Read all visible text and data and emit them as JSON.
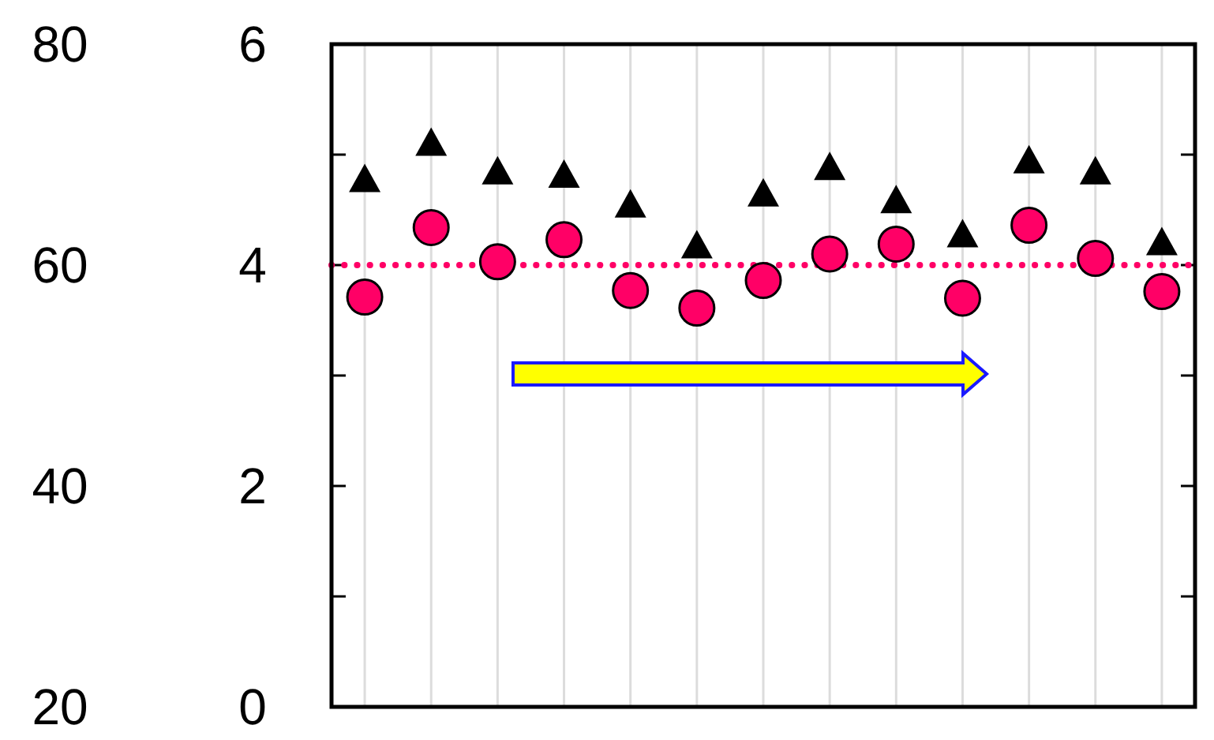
{
  "chart_data": {
    "type": "scatter",
    "categories": [
      null,
      null,
      null,
      null,
      null,
      null,
      null,
      null,
      null,
      null,
      null,
      null,
      null
    ],
    "ylim": [
      0,
      6
    ],
    "yticks": [
      0,
      {
        "value": 1,
        "label": null
      },
      2,
      {
        "value": 3,
        "label": null
      },
      4,
      {
        "value": 5,
        "label": null
      },
      6
    ],
    "y2lim": [
      20,
      80
    ],
    "y2ticks": [
      20,
      40,
      60,
      80
    ],
    "grid": "x",
    "legend": false,
    "series": [
      {
        "axis": "y2",
        "marker": "triangle",
        "color": "#000000",
        "values": [
          67.6,
          70.9,
          68.3,
          68.0,
          65.3,
          61.6,
          66.3,
          68.7,
          65.7,
          62.6,
          69.3,
          68.3,
          61.9
        ]
      },
      {
        "marker": "circle",
        "color": "#ff0066",
        "values": [
          3.71,
          4.34,
          4.03,
          4.23,
          3.77,
          3.61,
          3.86,
          4.1,
          4.19,
          3.7,
          4.36,
          4.06,
          3.76
        ]
      }
    ],
    "ref_lines": [
      {
        "axis": "y",
        "value": 4,
        "color": "#ff0066",
        "line_style": "dotted"
      }
    ]
  }
}
